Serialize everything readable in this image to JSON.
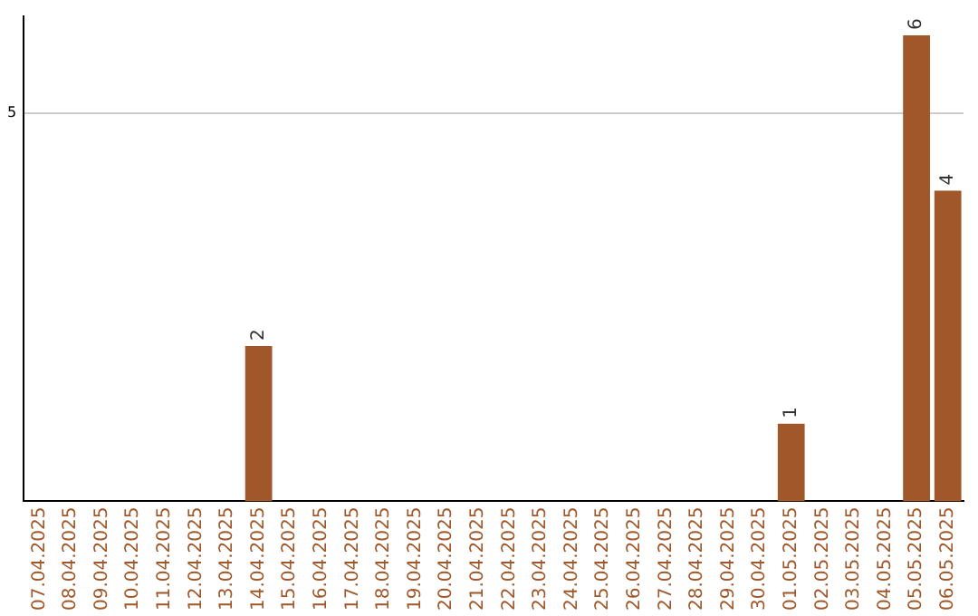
{
  "chart_data": {
    "type": "bar",
    "categories": [
      "07.04.2025",
      "08.04.2025",
      "09.04.2025",
      "10.04.2025",
      "11.04.2025",
      "12.04.2025",
      "13.04.2025",
      "14.04.2025",
      "15.04.2025",
      "16.04.2025",
      "17.04.2025",
      "18.04.2025",
      "19.04.2025",
      "20.04.2025",
      "21.04.2025",
      "22.04.2025",
      "23.04.2025",
      "24.04.2025",
      "25.04.2025",
      "26.04.2025",
      "27.04.2025",
      "28.04.2025",
      "29.04.2025",
      "30.04.2025",
      "01.05.2025",
      "02.05.2025",
      "03.05.2025",
      "04.05.2025",
      "05.05.2025",
      "06.05.2025"
    ],
    "values": [
      0,
      0,
      0,
      0,
      0,
      0,
      0,
      2,
      0,
      0,
      0,
      0,
      0,
      0,
      0,
      0,
      0,
      0,
      0,
      0,
      0,
      0,
      0,
      0,
      1,
      0,
      0,
      0,
      6,
      4
    ],
    "value_labels": [
      null,
      null,
      null,
      null,
      null,
      null,
      null,
      "2",
      null,
      null,
      null,
      null,
      null,
      null,
      null,
      null,
      null,
      null,
      null,
      null,
      null,
      null,
      null,
      null,
      "1",
      null,
      null,
      null,
      "6",
      "4"
    ],
    "color": "#a0582a",
    "ylim": [
      0,
      6.25
    ],
    "yticks": [
      5
    ],
    "grid": "y",
    "legend": false
  }
}
